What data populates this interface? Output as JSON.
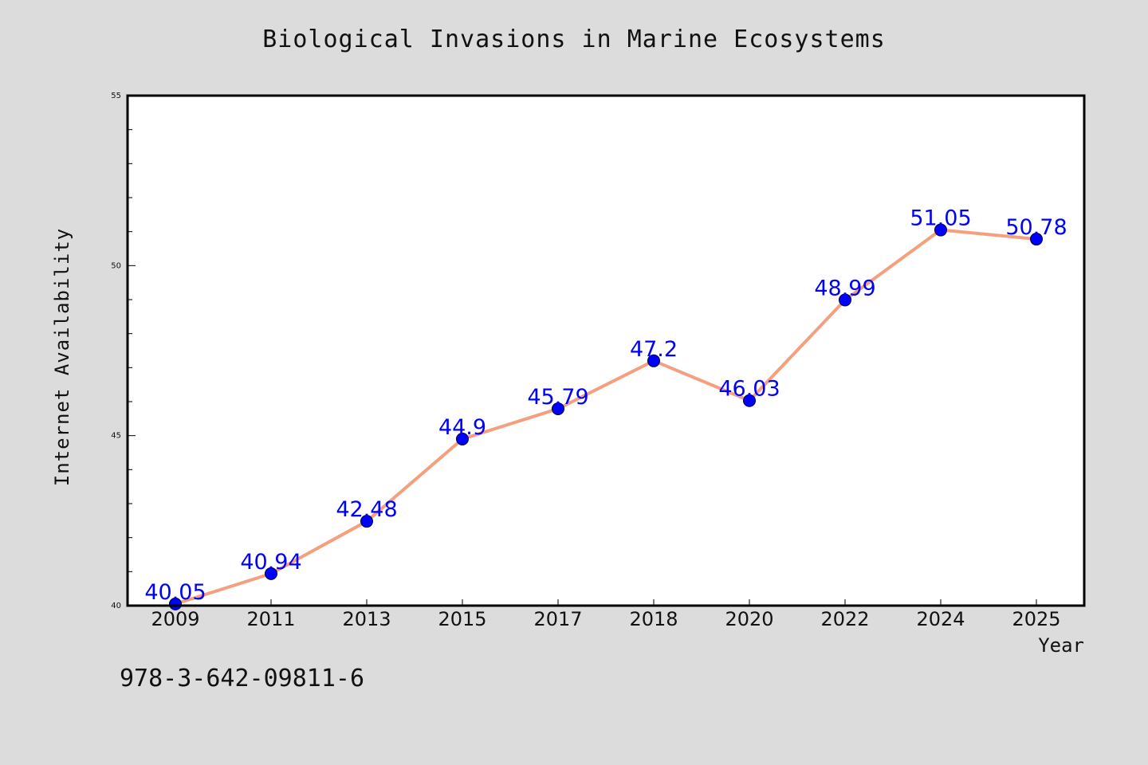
{
  "page": {
    "footer_code": "978-3-642-09811-6"
  },
  "colors": {
    "background": "#dcdcdc",
    "plot_background": "#ffffff",
    "line": "#f4a07f",
    "marker": "#0000ff",
    "data_label": "#0000ff"
  },
  "chart_data": {
    "type": "line",
    "title": "Biological Invasions in Marine Ecosystems",
    "xlabel": "Year",
    "ylabel": "Internet Availability",
    "categories": [
      "2009",
      "2011",
      "2013",
      "2015",
      "2017",
      "2018",
      "2020",
      "2022",
      "2024",
      "2025"
    ],
    "series": [
      {
        "values": [
          40.05,
          40.94,
          42.48,
          44.9,
          45.79,
          47.2,
          46.03,
          48.99,
          51.05,
          50.78
        ]
      }
    ],
    "data_labels": [
      "40.05",
      "40.94",
      "42.48",
      "44.9",
      "45.79",
      "47.2",
      "46.03",
      "48.99",
      "51.05",
      "50.78"
    ],
    "ylim": [
      40,
      55
    ],
    "yticks": [
      40,
      45,
      50,
      55
    ],
    "y_minor_step": 1,
    "grid": false,
    "legend": "none",
    "markers": "filled-circle"
  }
}
